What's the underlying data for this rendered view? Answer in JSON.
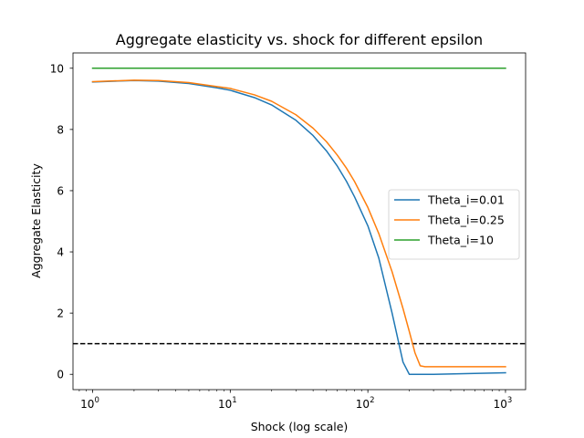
{
  "chart_data": {
    "type": "line",
    "title": "Aggregate elasticity vs. shock for different epsilon",
    "xlabel": "Shock (log scale)",
    "ylabel": "Aggregate Elasticity",
    "xscale": "log",
    "xlim": [
      0.72,
      1400
    ],
    "ylim": [
      -0.5,
      10.5
    ],
    "xticks": [
      {
        "value": 1,
        "base": "10",
        "exp": "0"
      },
      {
        "value": 10,
        "base": "10",
        "exp": "1"
      },
      {
        "value": 100,
        "base": "10",
        "exp": "2"
      },
      {
        "value": 1000,
        "base": "10",
        "exp": "3"
      }
    ],
    "yticks": [
      0,
      2,
      4,
      6,
      8,
      10
    ],
    "legend_position": "center-right",
    "series": [
      {
        "name": "Theta_i=0.01",
        "color": "#1f77b4",
        "x": [
          1,
          2,
          3,
          5,
          8,
          10,
          15,
          20,
          30,
          40,
          50,
          60,
          70,
          80,
          100,
          120,
          150,
          180,
          200,
          300,
          500,
          1000
        ],
        "y": [
          9.55,
          9.6,
          9.58,
          9.5,
          9.36,
          9.28,
          9.04,
          8.8,
          8.3,
          7.8,
          7.3,
          6.8,
          6.3,
          5.8,
          4.85,
          3.8,
          2.0,
          0.4,
          0.0,
          0.0,
          0.02,
          0.05
        ]
      },
      {
        "name": "Theta_i=0.25",
        "color": "#ff7f0e",
        "x": [
          1,
          2,
          3,
          5,
          8,
          10,
          15,
          20,
          30,
          40,
          50,
          60,
          70,
          80,
          100,
          120,
          150,
          180,
          200,
          220,
          240,
          260,
          300,
          500,
          1000
        ],
        "y": [
          9.56,
          9.61,
          9.6,
          9.53,
          9.4,
          9.34,
          9.13,
          8.92,
          8.48,
          8.04,
          7.6,
          7.16,
          6.73,
          6.3,
          5.45,
          4.6,
          3.35,
          2.15,
          1.4,
          0.7,
          0.28,
          0.25,
          0.25,
          0.25,
          0.25
        ]
      },
      {
        "name": "Theta_i=10",
        "color": "#2ca02c",
        "x": [
          1,
          1000
        ],
        "y": [
          10,
          10
        ]
      }
    ],
    "reference_line": {
      "y": 1,
      "color": "#000000",
      "style": "dashed"
    }
  }
}
